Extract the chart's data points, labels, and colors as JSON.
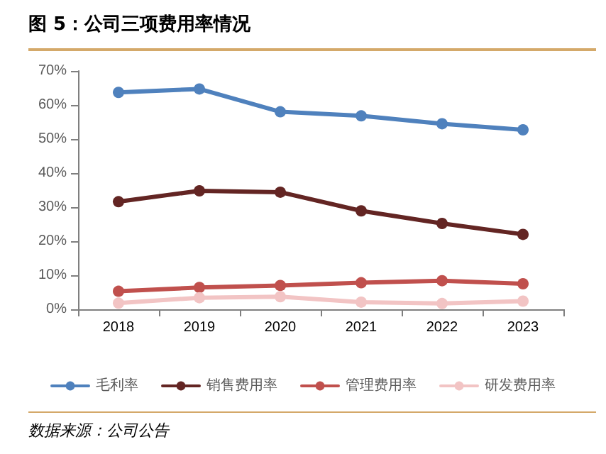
{
  "chart_data": {
    "type": "line",
    "title": "图 5：公司三项费用率情况",
    "categories": [
      "2018",
      "2019",
      "2020",
      "2021",
      "2022",
      "2023"
    ],
    "series": [
      {
        "name": "毛利率",
        "color": "#4f81bd",
        "values": [
          63.7,
          64.7,
          58.0,
          56.8,
          54.5,
          52.7
        ]
      },
      {
        "name": "销售费用率",
        "color": "#632523",
        "values": [
          31.6,
          34.8,
          34.4,
          28.9,
          25.2,
          22.0
        ]
      },
      {
        "name": "管理费用率",
        "color": "#c0504d",
        "values": [
          5.3,
          6.4,
          7.0,
          7.8,
          8.4,
          7.5
        ]
      },
      {
        "name": "研发费用率",
        "color": "#f2c4c4",
        "values": [
          1.8,
          3.4,
          3.7,
          2.1,
          1.7,
          2.4
        ]
      }
    ],
    "ylim": [
      0,
      70
    ],
    "yticks": [
      {
        "value": 0,
        "label": "0%"
      },
      {
        "value": 10,
        "label": "10%"
      },
      {
        "value": 20,
        "label": "20%"
      },
      {
        "value": 30,
        "label": "30%"
      },
      {
        "value": 40,
        "label": "40%"
      },
      {
        "value": 50,
        "label": "50%"
      },
      {
        "value": 60,
        "label": "60%"
      },
      {
        "value": 70,
        "label": "70%"
      }
    ],
    "grid": false,
    "legend": "bottom",
    "marker": "circle",
    "line_style": "solid",
    "annotations": [
      "数据来源：公司公告"
    ]
  }
}
